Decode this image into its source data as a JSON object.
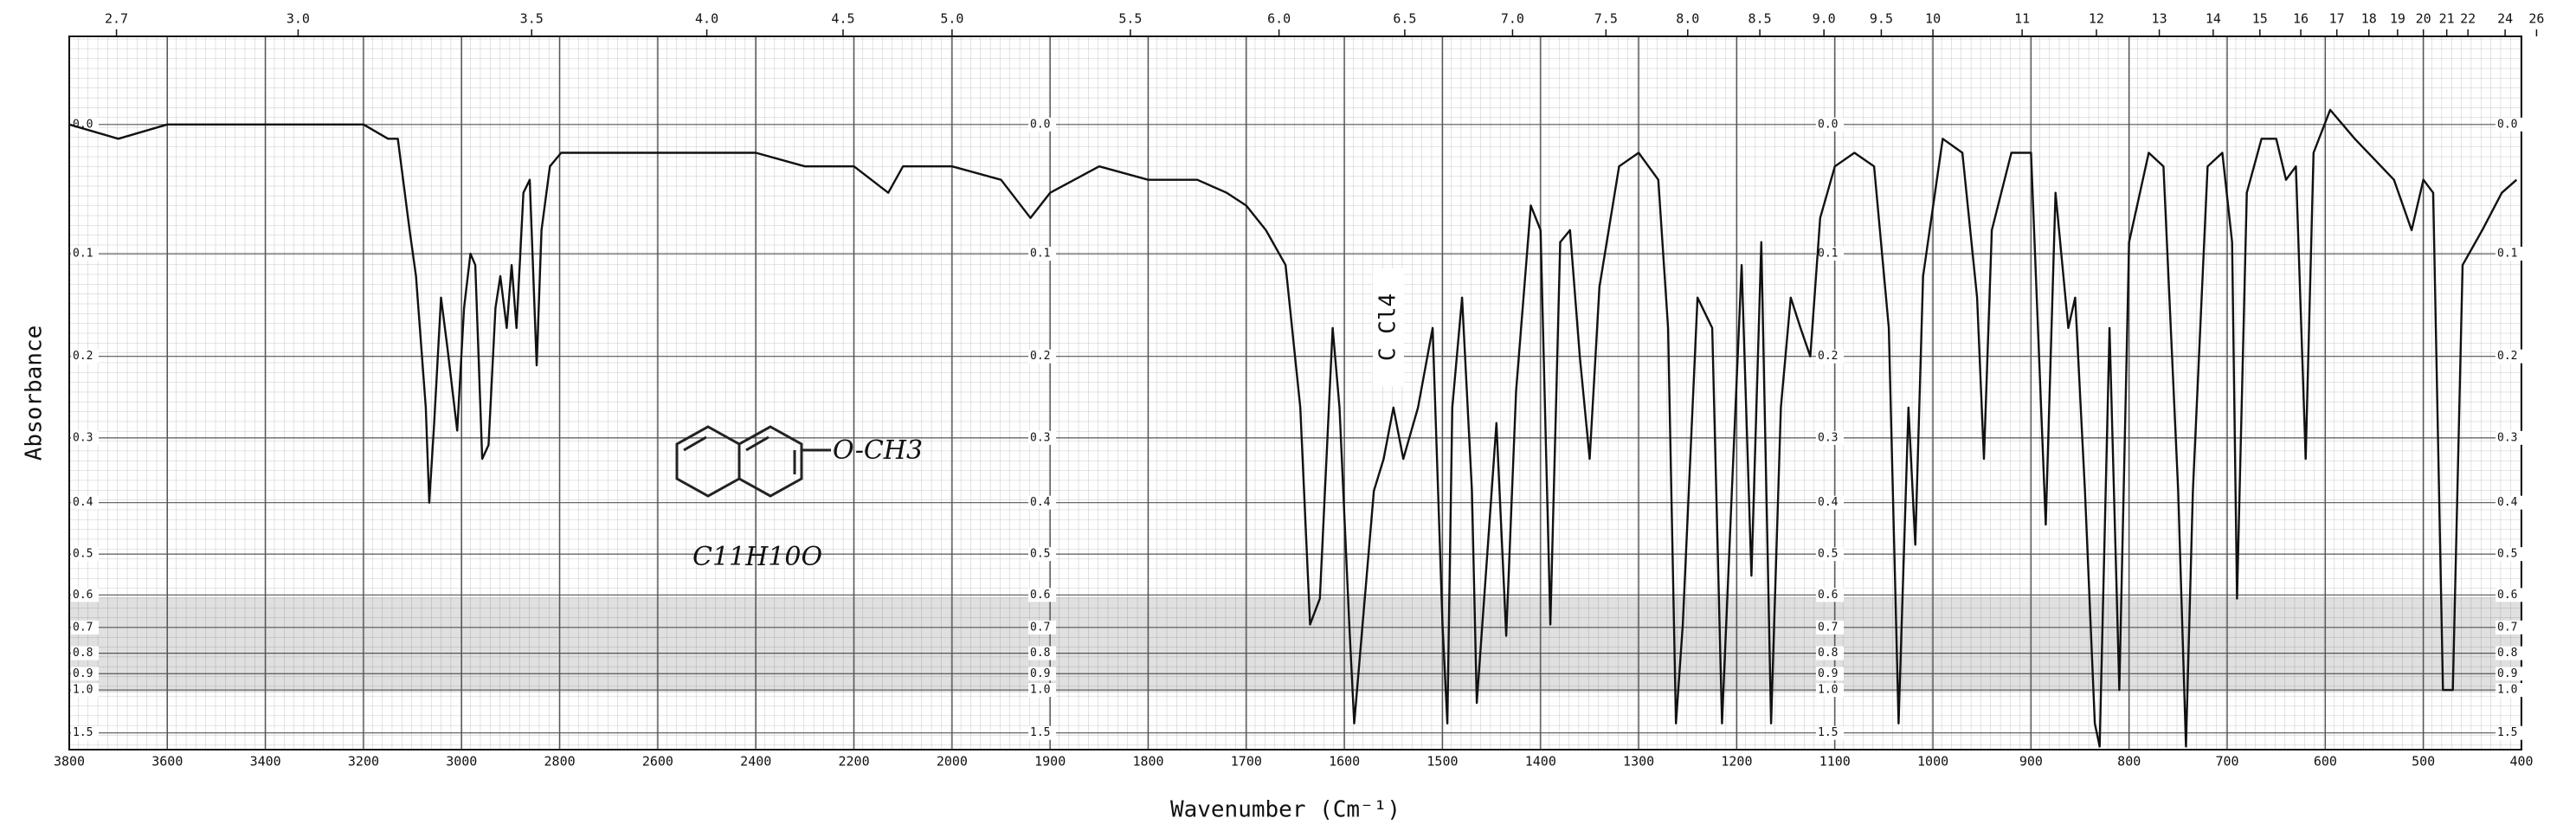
{
  "chart_data": {
    "type": "line",
    "x_label": "Wavenumber (Cm⁻¹)",
    "y_label": "Absorbance",
    "xlim": [
      3800,
      400
    ],
    "x_scale_break": 2000,
    "x_scale_ratio": 2,
    "xticks": [
      3800,
      3600,
      3400,
      3200,
      3000,
      2800,
      2600,
      2400,
      2200,
      2000,
      1900,
      1800,
      1700,
      1600,
      1500,
      1400,
      1300,
      1200,
      1100,
      1000,
      900,
      800,
      700,
      600,
      500,
      400
    ],
    "x2ticks": [
      2.7,
      {
        "value": 3,
        "label": "3.0"
      },
      3.5,
      {
        "value": 4,
        "label": "4.0"
      },
      4.5,
      {
        "value": 5,
        "label": "5.0"
      },
      5.5,
      {
        "value": 6,
        "label": "6.0"
      },
      6.5,
      {
        "value": 7,
        "label": "7.0"
      },
      7.5,
      {
        "value": 8,
        "label": "8.0"
      },
      8.5,
      {
        "value": 9,
        "label": "9.0"
      },
      9.5,
      10,
      11,
      12,
      13,
      14,
      15,
      16,
      17,
      18,
      19,
      20,
      21,
      22,
      24,
      26
    ],
    "ylim": [
      -0.057,
      2.3
    ],
    "y_scale": "transmittance",
    "yticks": [
      {
        "value": 0,
        "label": "0.0"
      },
      0.1,
      0.2,
      0.3,
      0.4,
      0.5,
      0.6,
      0.7,
      0.8,
      0.9,
      {
        "value": 1,
        "label": "1.0"
      },
      1.5
    ],
    "grid": true,
    "color": "#111111",
    "annotations": [
      "C Cl4",
      "O-CH3",
      "C11H10O"
    ],
    "x": [
      3800,
      3700,
      3600,
      3400,
      3200,
      3150,
      3130,
      3106,
      3093,
      3073,
      3066,
      3056,
      3042,
      3029,
      3009,
      2995,
      2982,
      2972,
      2958,
      2945,
      2931,
      2921,
      2908,
      2898,
      2888,
      2874,
      2861,
      2847,
      2837,
      2820,
      2797,
      2780,
      2700,
      2600,
      2500,
      2400,
      2300,
      2200,
      2130,
      2100,
      2000,
      1950,
      1920,
      1900,
      1850,
      1800,
      1750,
      1720,
      1700,
      1680,
      1660,
      1645,
      1635,
      1625,
      1612,
      1605,
      1595,
      1590,
      1570,
      1560,
      1550,
      1540,
      1525,
      1510,
      1500,
      1495,
      1490,
      1480,
      1470,
      1465,
      1455,
      1445,
      1435,
      1425,
      1410,
      1400,
      1390,
      1380,
      1370,
      1360,
      1350,
      1340,
      1320,
      1300,
      1280,
      1270,
      1262,
      1255,
      1240,
      1225,
      1215,
      1205,
      1195,
      1185,
      1175,
      1165,
      1155,
      1145,
      1135,
      1125,
      1115,
      1100,
      1080,
      1060,
      1045,
      1035,
      1025,
      1018,
      1010,
      990,
      970,
      955,
      948,
      940,
      920,
      900,
      885,
      875,
      862,
      855,
      845,
      835,
      830,
      820,
      810,
      800,
      780,
      765,
      750,
      742,
      735,
      720,
      705,
      695,
      690,
      680,
      665,
      650,
      640,
      630,
      620,
      612,
      595,
      570,
      530,
      512,
      500,
      490,
      480,
      470,
      460,
      440,
      420,
      405
    ],
    "values": [
      0,
      0.01,
      0,
      0,
      0,
      0.01,
      0.01,
      0.08,
      0.12,
      0.26,
      0.4,
      0.28,
      0.14,
      0.19,
      0.29,
      0.15,
      0.1,
      0.11,
      0.33,
      0.31,
      0.15,
      0.12,
      0.17,
      0.11,
      0.17,
      0.05,
      0.04,
      0.21,
      0.08,
      0.03,
      0.02,
      0.02,
      0.02,
      0.02,
      0.02,
      0.02,
      0.03,
      0.03,
      0.05,
      0.03,
      0.03,
      0.04,
      0.07,
      0.05,
      0.03,
      0.04,
      0.04,
      0.05,
      0.06,
      0.08,
      0.11,
      0.26,
      0.69,
      0.61,
      0.17,
      0.26,
      0.69,
      1.33,
      0.38,
      0.33,
      0.26,
      0.33,
      0.26,
      0.17,
      0.69,
      1.33,
      0.26,
      0.14,
      0.38,
      1.1,
      0.52,
      0.28,
      0.73,
      0.24,
      0.06,
      0.08,
      0.69,
      0.09,
      0.08,
      0.2,
      0.33,
      0.13,
      0.03,
      0.02,
      0.04,
      0.17,
      1.33,
      0.69,
      0.14,
      0.17,
      1.33,
      0.38,
      0.11,
      0.55,
      0.09,
      1.33,
      0.26,
      0.14,
      0.17,
      0.2,
      0.07,
      0.03,
      0.02,
      0.03,
      0.17,
      1.33,
      0.26,
      0.48,
      0.12,
      0.01,
      0.02,
      0.14,
      0.33,
      0.08,
      0.02,
      0.02,
      0.44,
      0.05,
      0.17,
      0.14,
      0.38,
      1.33,
      2,
      0.17,
      1,
      0.09,
      0.02,
      0.03,
      0.38,
      2,
      0.38,
      0.03,
      0.02,
      0.09,
      0.61,
      0.05,
      0.01,
      0.01,
      0.04,
      0.03,
      0.33,
      0.02,
      -0.01,
      0.01,
      0.04,
      0.08,
      0.04,
      0.05,
      1,
      1,
      0.11,
      0.08,
      0.05,
      0.04
    ]
  }
}
